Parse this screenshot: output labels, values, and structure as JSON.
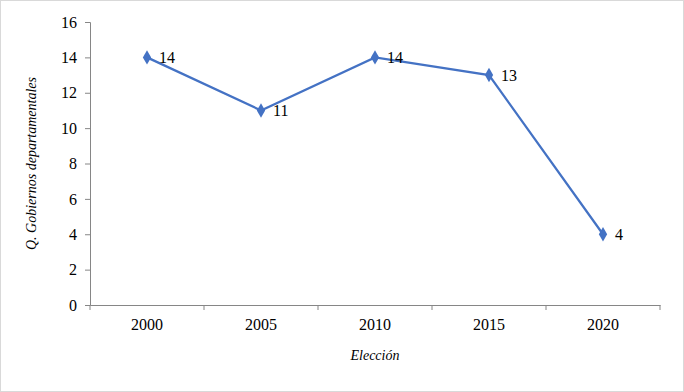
{
  "chart_data": {
    "type": "line",
    "x_label": "Elección",
    "y_label": "Q. Gobiernos departamentales",
    "categories": [
      "2000",
      "2005",
      "2010",
      "2015",
      "2020"
    ],
    "values": [
      14,
      11,
      14,
      13,
      4
    ],
    "color": "#4472c4",
    "marker": "diamond",
    "line_style": "solid",
    "ylim": [
      0,
      16
    ],
    "yticks": [
      0,
      2,
      4,
      6,
      8,
      10,
      12,
      14,
      16
    ],
    "grid": false,
    "data_labels": true
  }
}
